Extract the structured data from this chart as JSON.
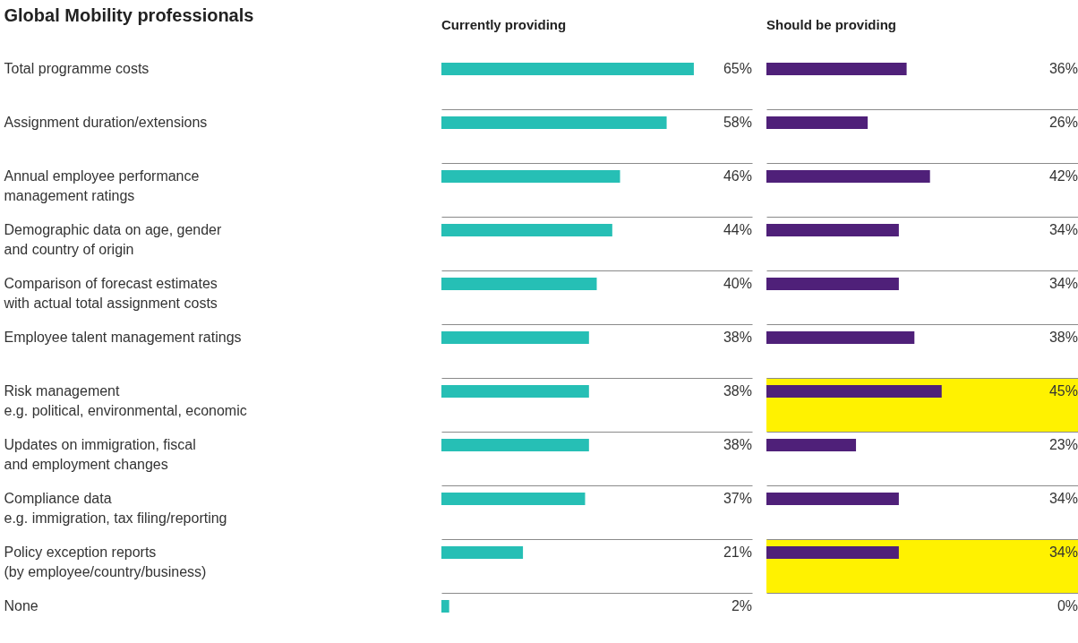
{
  "chart_data": [
    {
      "type": "bar",
      "orientation": "horizontal",
      "title": "Currently providing",
      "ylabel": "Global Mobility professionals",
      "categories": [
        "Total programme costs",
        "Assignment duration/extensions",
        "Annual employee performance\nmanagement ratings",
        "Demographic data on age, gender\nand country of origin",
        "Comparison of forecast estimates\nwith actual total assignment costs",
        "Employee talent management ratings",
        "Risk management\ne.g. political, environmental, economic",
        "Updates on immigration, fiscal\nand employment changes",
        "Compliance data\ne.g. immigration, tax filing/reporting",
        "Policy exception reports\n(by employee/country/business)",
        "None"
      ],
      "values": [
        65,
        58,
        46,
        44,
        40,
        38,
        38,
        38,
        37,
        21,
        2
      ],
      "value_labels": [
        "65%",
        "58%",
        "46%",
        "44%",
        "40%",
        "38%",
        "38%",
        "38%",
        "37%",
        "21%",
        "2%"
      ],
      "color": "#26bfb5",
      "grid": "y",
      "tick_labels": "y"
    },
    {
      "type": "bar",
      "orientation": "horizontal",
      "title": "Should be providing",
      "categories": [
        "Total programme costs",
        "Assignment duration/extensions",
        "Annual employee performance\nmanagement ratings",
        "Demographic data on age, gender\nand country of origin",
        "Comparison of forecast estimates\nwith actual total assignment costs",
        "Employee talent management ratings",
        "Risk management\ne.g. political, environmental, economic",
        "Updates on immigration, fiscal\nand employment changes",
        "Compliance data\ne.g. immigration, tax filing/reporting",
        "Policy exception reports\n(by employee/country/business)",
        "None"
      ],
      "values": [
        36,
        26,
        42,
        34,
        34,
        38,
        45,
        23,
        34,
        34,
        0
      ],
      "value_labels": [
        "36%",
        "26%",
        "42%",
        "34%",
        "34%",
        "38%",
        "45%",
        "23%",
        "34%",
        "34%",
        "0%"
      ],
      "color": "#4f2079",
      "grid": "y",
      "tick_labels": false,
      "bands": [
        {
          "axis": "y",
          "from": "Risk management\ne.g. political, environmental, economic",
          "to": "Risk management\ne.g. political, environmental, economic",
          "color": "#fff200"
        },
        {
          "axis": "y",
          "from": "Policy exception reports\n(by employee/country/business)",
          "to": "Policy exception reports\n(by employee/country/business)",
          "color": "#fff200"
        }
      ]
    }
  ]
}
